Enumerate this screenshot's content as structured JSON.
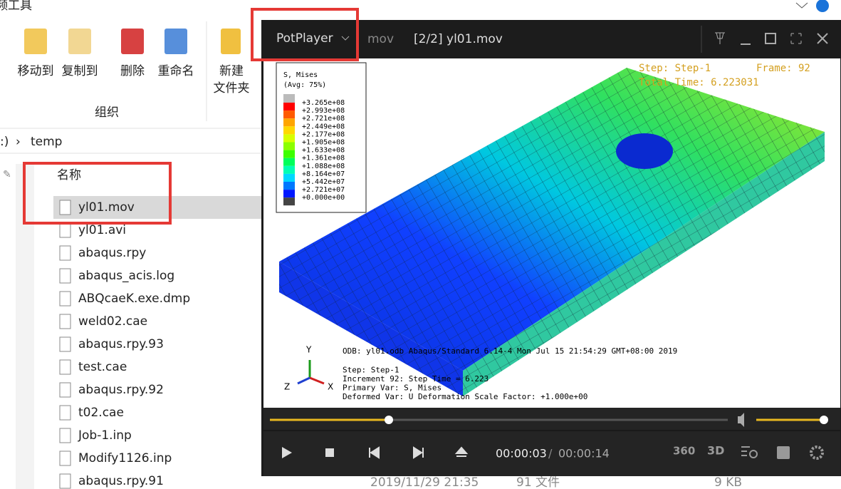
{
  "explorer": {
    "ribbon_tab": "频工具",
    "buttons": [
      "移动到",
      "复制到",
      "删除",
      "重命名"
    ],
    "new_folder": [
      "新建",
      "文件夹"
    ],
    "group_label": "组织",
    "address": [
      ":)",
      "temp"
    ],
    "column_header": "名称",
    "files": [
      "yl01.mov",
      "yl01.avi",
      "abaqus.rpy",
      "abaqus_acis.log",
      "ABQcaeK.exe.dmp",
      "weld02.cae",
      "abaqus.rpy.93",
      "test.cae",
      "abaqus.rpy.92",
      "t02.cae",
      "Job-1.inp",
      "Modify1126.inp",
      "abaqus.rpy.91"
    ],
    "bottom_row": {
      "date": "2019/11/29 21:35",
      "type": "91 文件",
      "size": "9 KB"
    }
  },
  "player": {
    "brand": "PotPlayer",
    "format": "mov",
    "title": "[2/2] yl01.mov",
    "overlay": {
      "step": "Step: Step-1",
      "frame": "Frame: 92",
      "total_time": "Total Time: 6.223031"
    },
    "legend": {
      "title": "S, Mises",
      "subtitle": "(Avg: 75%)",
      "labels": [
        "+3.265e+08",
        "+2.993e+08",
        "+2.721e+08",
        "+2.449e+08",
        "+2.177e+08",
        "+1.905e+08",
        "+1.633e+08",
        "+1.361e+08",
        "+1.088e+08",
        "+8.164e+07",
        "+5.442e+07",
        "+2.721e+07",
        "+0.000e+00"
      ],
      "colors": [
        "#ff0000",
        "#ff5a00",
        "#ffa500",
        "#ffd800",
        "#d8ff00",
        "#8cff00",
        "#3cff00",
        "#00ff5a",
        "#00ffb4",
        "#00d8ff",
        "#0078ff",
        "#0018ff"
      ]
    },
    "info": [
      "ODB: yl01.odb    Abaqus/Standard 6.14-4    Mon Jul 15 21:54:29 GMT+08:00 2019",
      "Step: Step-1",
      "Increment    92: Step Time =    6.223",
      "Primary Var: S, Mises",
      "Deformed Var: U   Deformation Scale Factor: +1.000e+00"
    ],
    "axes": [
      "Y",
      "Z",
      "X"
    ],
    "time_current": "00:00:03",
    "time_separator": "/",
    "time_total": "00:00:14",
    "icon_labels": [
      "360",
      "3D"
    ]
  }
}
